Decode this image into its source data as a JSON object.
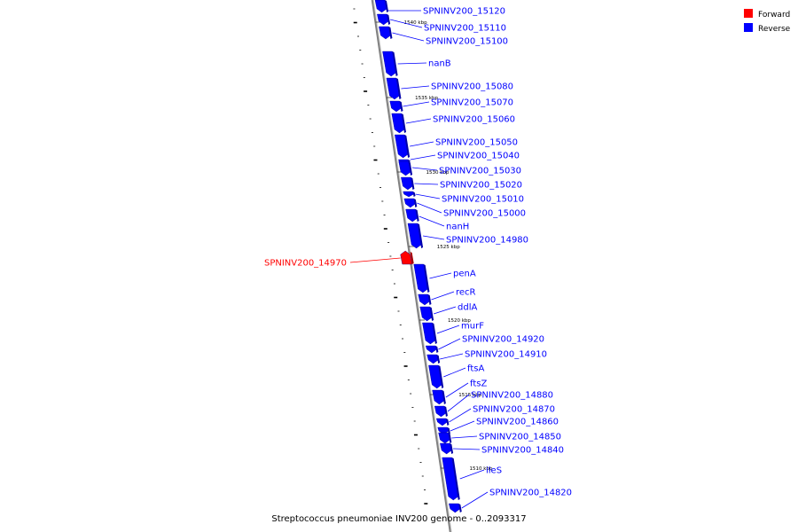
{
  "colors": {
    "forward": "#ff0000",
    "reverse": "#0000ff",
    "backbone": "#808080"
  },
  "legend": [
    {
      "label": "Forward",
      "strand": "forward"
    },
    {
      "label": "Reverse",
      "strand": "reverse"
    }
  ],
  "caption": "Streptococcus pneumoniae INV200 genome - 0..2093317",
  "ticks": [
    {
      "label": "1540 kbp",
      "kbp": 1540
    },
    {
      "label": "1535 kbp",
      "kbp": 1535
    },
    {
      "label": "1530 kbp",
      "kbp": 1530
    },
    {
      "label": "1525 kbp",
      "kbp": 1525
    },
    {
      "label": "1520 kbp",
      "kbp": 1520
    },
    {
      "label": "1515 kbp",
      "kbp": 1515
    },
    {
      "label": "1510 kbp",
      "kbp": 1510
    }
  ],
  "genes": [
    {
      "name": "SPNINV200_15120",
      "strand": "reverse"
    },
    {
      "name": "SPNINV200_15110",
      "strand": "reverse"
    },
    {
      "name": "SPNINV200_15100",
      "strand": "reverse"
    },
    {
      "name": "nanB",
      "strand": "reverse"
    },
    {
      "name": "SPNINV200_15080",
      "strand": "reverse"
    },
    {
      "name": "SPNINV200_15070",
      "strand": "reverse"
    },
    {
      "name": "SPNINV200_15060",
      "strand": "reverse"
    },
    {
      "name": "SPNINV200_15050",
      "strand": "reverse"
    },
    {
      "name": "SPNINV200_15040",
      "strand": "reverse"
    },
    {
      "name": "SPNINV200_15030",
      "strand": "reverse"
    },
    {
      "name": "SPNINV200_15020",
      "strand": "reverse"
    },
    {
      "name": "SPNINV200_15010",
      "strand": "reverse"
    },
    {
      "name": "SPNINV200_15000",
      "strand": "reverse"
    },
    {
      "name": "nanH",
      "strand": "reverse"
    },
    {
      "name": "SPNINV200_14980",
      "strand": "reverse"
    },
    {
      "name": "SPNINV200_14970",
      "strand": "forward"
    },
    {
      "name": "penA",
      "strand": "reverse"
    },
    {
      "name": "recR",
      "strand": "reverse"
    },
    {
      "name": "ddlA",
      "strand": "reverse"
    },
    {
      "name": "murF",
      "strand": "reverse"
    },
    {
      "name": "SPNINV200_14920",
      "strand": "reverse"
    },
    {
      "name": "SPNINV200_14910",
      "strand": "reverse"
    },
    {
      "name": "ftsA",
      "strand": "reverse"
    },
    {
      "name": "ftsZ",
      "strand": "reverse"
    },
    {
      "name": "SPNINV200_14880",
      "strand": "reverse"
    },
    {
      "name": "SPNINV200_14870",
      "strand": "reverse"
    },
    {
      "name": "SPNINV200_14860",
      "strand": "reverse"
    },
    {
      "name": "SPNINV200_14850",
      "strand": "reverse"
    },
    {
      "name": "SPNINV200_14840",
      "strand": "reverse"
    },
    {
      "name": "ileS",
      "strand": "reverse"
    },
    {
      "name": "SPNINV200_14820",
      "strand": "reverse"
    }
  ]
}
